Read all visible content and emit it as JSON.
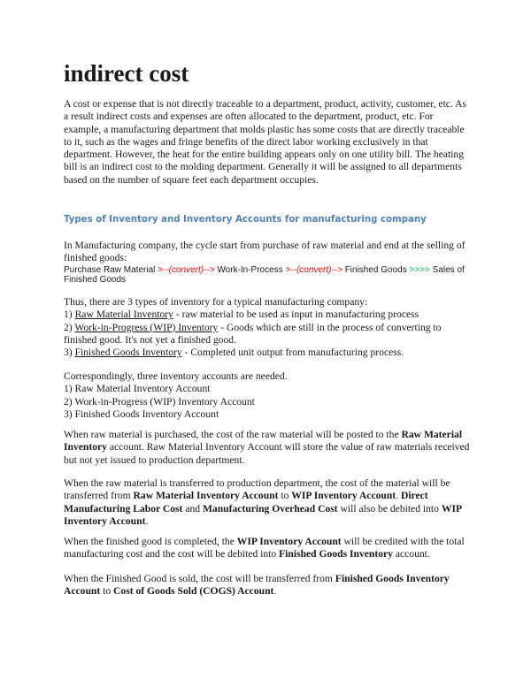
{
  "title": "indirect cost",
  "intro": "A cost or expense that is not directly traceable to a department, product, activity, customer, etc. As a result indirect costs and expenses are often allocated to the department, product, etc. For example, a manufacturing department that molds plastic has some costs that are directly traceable to it, such as the wages and fringe benefits of the direct labor working exclusively in that department. However, the heat for the entire building appears only on one utility bill. The heating bill is an indirect cost to the molding department. Generally it will be assigned to all departments based on the number of square feet each department occupies.",
  "heading": "Types of Inventory and Inventory Accounts for manufacturing company",
  "cycle_intro": "In Manufacturing company, the cycle start from purchase of raw material and end at the selling of finished goods:",
  "flow": [
    {
      "text": "Purchase Raw Material ",
      "style": ""
    },
    {
      "text": ">--(convert)--> ",
      "style": "red"
    },
    {
      "text": "Work-In-Process ",
      "style": ""
    },
    {
      "text": ">--(convert)--> ",
      "style": "red"
    },
    {
      "text": "Finished Goods ",
      "style": ""
    },
    {
      "text": ">>>> ",
      "style": "green"
    },
    {
      "text": "Sales of Finished Goods",
      "style": ""
    }
  ],
  "colors": {
    "heading": "#4f81bd",
    "convert_arrow": "#ff0000",
    "sales_arrow": "#00b050"
  },
  "types": [
    [
      {
        "text": "Thus, there are 3 types of inventory for a typical manufacturing company:",
        "style": ""
      }
    ],
    [
      {
        "text": "1) ",
        "style": ""
      },
      {
        "text": "Raw Material Inventory",
        "style": "u"
      },
      {
        "text": " - raw material to be used as input in manufacturing process",
        "style": ""
      }
    ],
    [
      {
        "text": "2) ",
        "style": ""
      },
      {
        "text": "Work-in-Progress (WIP) Inventory",
        "style": "u"
      },
      {
        "text": " - Goods which are still in the process of converting to finished good. It's not yet a finished good.",
        "style": ""
      }
    ],
    [
      {
        "text": "3) ",
        "style": ""
      },
      {
        "text": "Finished Goods Inventory",
        "style": "u"
      },
      {
        "text": " - Completed unit output from manufacturing process.",
        "style": ""
      }
    ]
  ],
  "accounts": [
    "Correspondingly, three inventory accounts are needed.",
    "1) Raw Material Inventory Account",
    "2) Work-in-Progress (WIP) Inventory Account",
    "3) Finished Goods Inventory Account"
  ],
  "paragraphs": [
    [
      {
        "text": "When raw material is purchased, the cost of the raw material will be posted to the ",
        "style": ""
      },
      {
        "text": "Raw Material Inventory",
        "style": "b"
      },
      {
        "text": " account. Raw Material Inventory Account will store the value of raw materials received but not yet issued to production department.",
        "style": ""
      }
    ],
    [
      {
        "text": "When the raw material is transferred to production department, the cost of the material will be transferred from ",
        "style": ""
      },
      {
        "text": "Raw Material Inventory Account",
        "style": "b"
      },
      {
        "text": " to ",
        "style": ""
      },
      {
        "text": "WIP Inventory Account",
        "style": "b"
      },
      {
        "text": ". ",
        "style": ""
      },
      {
        "text": "Direct Manufacturing Labor Cost",
        "style": "b"
      },
      {
        "text": " and ",
        "style": ""
      },
      {
        "text": "Manufacturing Overhead Cost",
        "style": "b"
      },
      {
        "text": " will also be debited into ",
        "style": ""
      },
      {
        "text": "WIP Inventory Account",
        "style": "b"
      },
      {
        "text": ".",
        "style": ""
      }
    ],
    [
      {
        "text": "When the finished good is completed, the ",
        "style": ""
      },
      {
        "text": "WIP Inventory Account",
        "style": "b"
      },
      {
        "text": " will be credited with the total manufacturing cost and the cost will be debited into ",
        "style": ""
      },
      {
        "text": "Finished Goods Inventory",
        "style": "b"
      },
      {
        "text": " account.",
        "style": ""
      }
    ],
    [
      {
        "text": "When the Finished Good is sold, the cost will be transferred from ",
        "style": ""
      },
      {
        "text": "Finished Goods Inventory Account",
        "style": "b"
      },
      {
        "text": " to ",
        "style": ""
      },
      {
        "text": "Cost of Goods Sold (COGS) Account",
        "style": "b"
      },
      {
        "text": ".",
        "style": ""
      }
    ]
  ]
}
